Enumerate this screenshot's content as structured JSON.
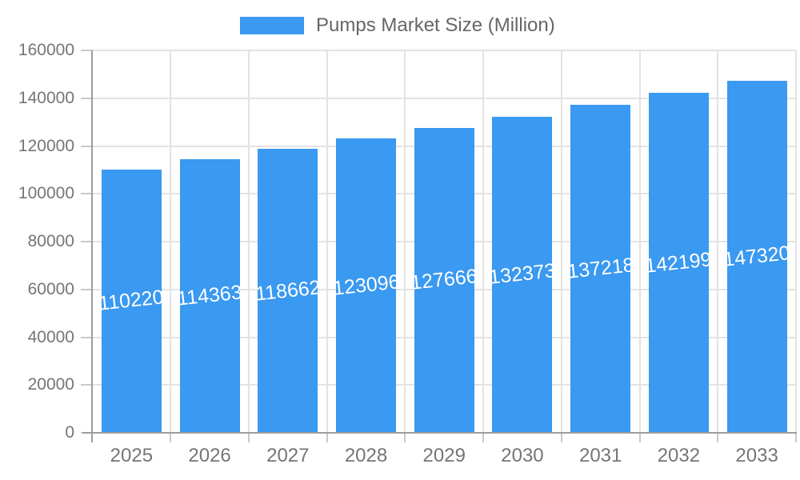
{
  "legend": {
    "label": "Pumps Market Size (Million)"
  },
  "chart_data": {
    "type": "bar",
    "title": "Pumps Market Size (Million)",
    "series_name": "Pumps Market Size (Million)",
    "categories": [
      "2025",
      "2026",
      "2027",
      "2028",
      "2029",
      "2030",
      "2031",
      "2032",
      "2033"
    ],
    "values": [
      110220,
      114363,
      118662,
      123096,
      127666,
      132373,
      137218,
      142199,
      147320
    ],
    "bar_labels": [
      "110220",
      "114363",
      "118662",
      "123096",
      "127666",
      "132373",
      "137218",
      "142199",
      "147320"
    ],
    "xlabel": "",
    "ylabel": "",
    "ylim": [
      0,
      160000
    ],
    "y_tick_step": 20000,
    "y_tick_labels": [
      "0",
      "20000",
      "40000",
      "60000",
      "80000",
      "100000",
      "120000",
      "140000",
      "160000"
    ],
    "grid": true,
    "legend_position": "top-center",
    "colors": {
      "bar": "#3a99f0",
      "bar_label": "#ffffff",
      "axis": "#9e9e9e",
      "gridline": "#e3e3e3",
      "tick": "#c9c9c9",
      "tick_label": "#757575",
      "legend_text": "#666666",
      "background": "#ffffff"
    }
  }
}
